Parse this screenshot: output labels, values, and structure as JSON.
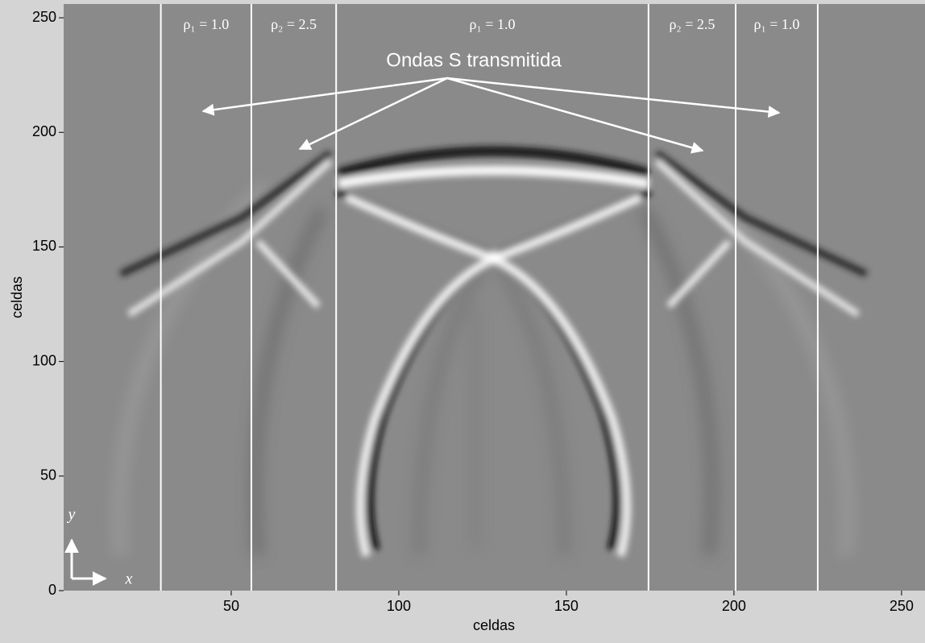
{
  "chart_data": {
    "type": "image",
    "xlabel": "celdas",
    "ylabel": "celdas",
    "xlim": [
      0,
      257
    ],
    "ylim": [
      0,
      256
    ],
    "xticks": [
      50,
      100,
      150,
      200,
      250
    ],
    "yticks": [
      0,
      50,
      100,
      150,
      200,
      250
    ],
    "interfaces": [
      29,
      56,
      81.3,
      174.5,
      200.5,
      225
    ],
    "region_labels": [
      "ρ₁ = 1.0",
      "ρ₂ = 2.5",
      "ρ₁ = 1.0",
      "ρ₂ = 2.5",
      "ρ₁ = 1.0"
    ],
    "annotation": "Ondas S transmitida",
    "corner_axes": [
      "x",
      "y"
    ],
    "background": "#8a8a8a",
    "interface_color": "#ffffff"
  }
}
